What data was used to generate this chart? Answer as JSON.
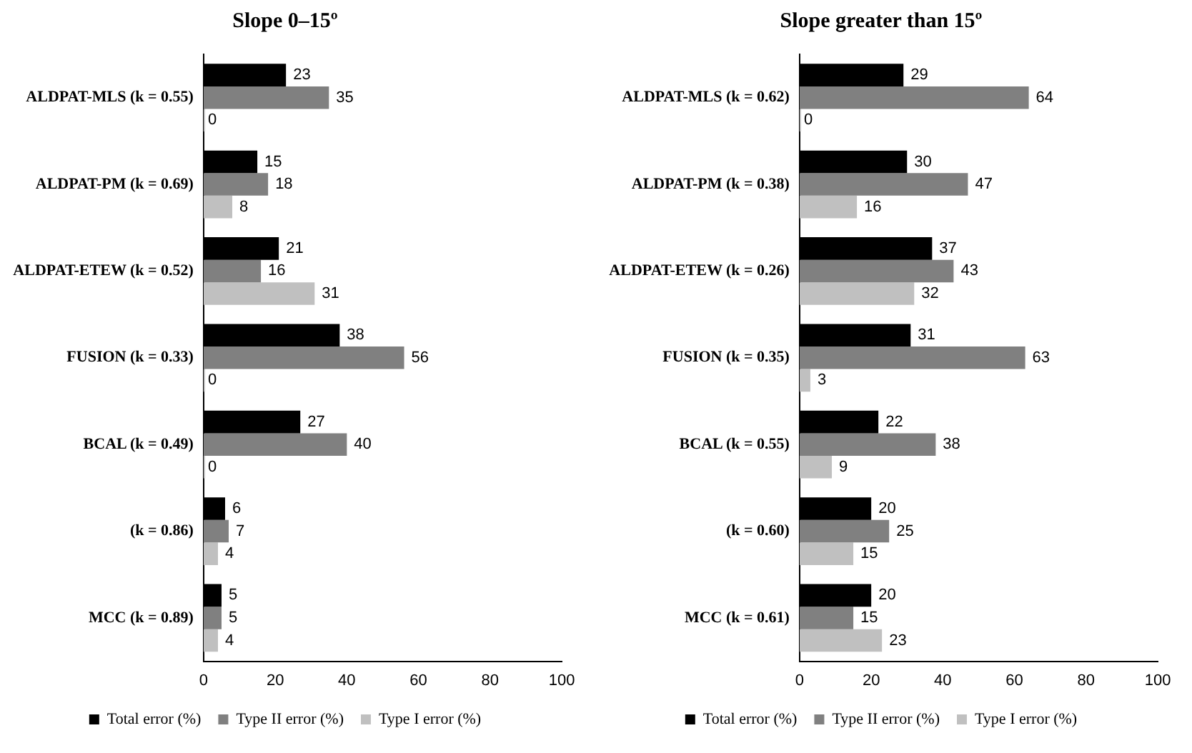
{
  "chart_data": [
    {
      "type": "bar",
      "orientation": "horizontal",
      "title": "Slope 0–15º",
      "categories": [
        "ALDPAT-MLS (k = 0.55)",
        "ALDPAT-PM (k = 0.69)",
        "ALDPAT-ETEW (k = 0.52)",
        "FUSION (k = 0.33)",
        "BCAL (k = 0.49)",
        "(k = 0.86)",
        "MCC (k = 0.89)"
      ],
      "series": [
        {
          "name": "Total error (%)",
          "color": "#000000",
          "values": [
            23,
            15,
            21,
            38,
            27,
            6,
            5
          ]
        },
        {
          "name": "Type II error (%)",
          "color": "#808080",
          "values": [
            35,
            18,
            16,
            56,
            40,
            7,
            5
          ]
        },
        {
          "name": "Type I error (%)",
          "color": "#c0c0c0",
          "values": [
            0,
            8,
            31,
            0,
            0,
            4,
            4
          ]
        }
      ],
      "xlim": [
        0,
        100
      ],
      "xticks": [
        0,
        20,
        40,
        60,
        80,
        100
      ],
      "data_labels": true,
      "legend": "bottom",
      "grid": false
    },
    {
      "type": "bar",
      "orientation": "horizontal",
      "title": "Slope greater than 15º",
      "categories": [
        "ALDPAT-MLS (k = 0.62)",
        "ALDPAT-PM (k = 0.38)",
        "ALDPAT-ETEW (k = 0.26)",
        "FUSION (k = 0.35)",
        "BCAL (k = 0.55)",
        "(k = 0.60)",
        "MCC (k = 0.61)"
      ],
      "series": [
        {
          "name": "Total error (%)",
          "color": "#000000",
          "values": [
            29,
            30,
            37,
            31,
            22,
            20,
            20
          ]
        },
        {
          "name": "Type II error (%)",
          "color": "#808080",
          "values": [
            64,
            47,
            43,
            63,
            38,
            25,
            15
          ]
        },
        {
          "name": "Type I error (%)",
          "color": "#c0c0c0",
          "values": [
            0,
            16,
            32,
            3,
            9,
            15,
            23
          ]
        }
      ],
      "xlim": [
        0,
        100
      ],
      "xticks": [
        0,
        20,
        40,
        60,
        80,
        100
      ],
      "data_labels": true,
      "legend": "bottom",
      "grid": false
    }
  ]
}
